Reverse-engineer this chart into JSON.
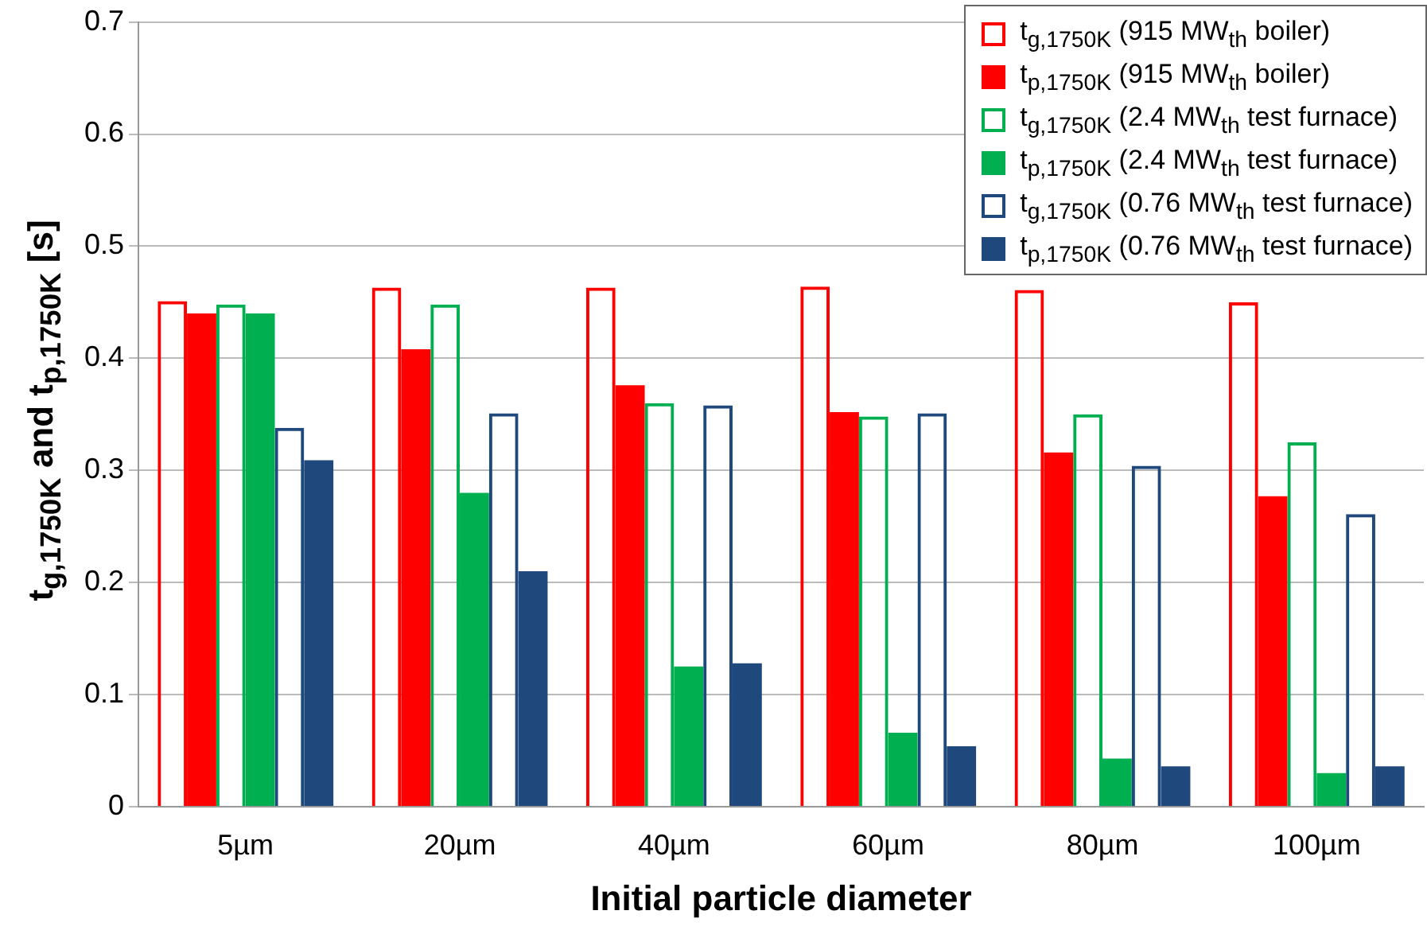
{
  "chart_data": {
    "type": "bar",
    "xlabel": "Initial particle diameter",
    "ylabel": "t$_{g,1750K}$ and t$_{p,1750K}$ [s]",
    "categories": [
      "5µm",
      "20µm",
      "40µm",
      "60µm",
      "80µm",
      "100µm"
    ],
    "series": [
      {
        "name": "t$_{g,1750K}$ (915 MW$_{th}$ boiler)",
        "color": "#ff0000",
        "line_style": "solid",
        "values": [
          0.451,
          0.463,
          0.463,
          0.464,
          0.461,
          0.45
        ]
      },
      {
        "name": "t$_{p,1750K}$ (915 MW$_{th}$ boiler)",
        "color": "#ff0000",
        "values": [
          0.44,
          0.408,
          0.376,
          0.352,
          0.316,
          0.277
        ]
      },
      {
        "name": "t$_{g,1750K}$ (2.4 MW$_{th}$ test furnace)",
        "color": "#00b050",
        "line_style": "solid",
        "values": [
          0.448,
          0.448,
          0.36,
          0.348,
          0.35,
          0.325
        ]
      },
      {
        "name": "t$_{p,1750K}$ (2.4 MW$_{th}$ test furnace)",
        "color": "#00b050",
        "values": [
          0.44,
          0.28,
          0.125,
          0.066,
          0.043,
          0.03
        ]
      },
      {
        "name": "t$_{g,1750K}$ (0.76 MW$_{th}$ test furnace)",
        "color": "#1f497d",
        "line_style": "solid",
        "values": [
          0.338,
          0.351,
          0.358,
          0.351,
          0.304,
          0.261
        ]
      },
      {
        "name": "t$_{p,1750K}$ (0.76 MW$_{th}$ test furnace)",
        "color": "#1f497d",
        "values": [
          0.309,
          0.21,
          0.128,
          0.054,
          0.036,
          0.036
        ]
      }
    ],
    "ylim": [
      0,
      0.7
    ],
    "yticks": [
      0,
      0.1,
      0.2,
      0.3,
      0.4,
      0.5,
      0.6,
      0.7
    ],
    "grid": "y",
    "legend": "top right"
  }
}
